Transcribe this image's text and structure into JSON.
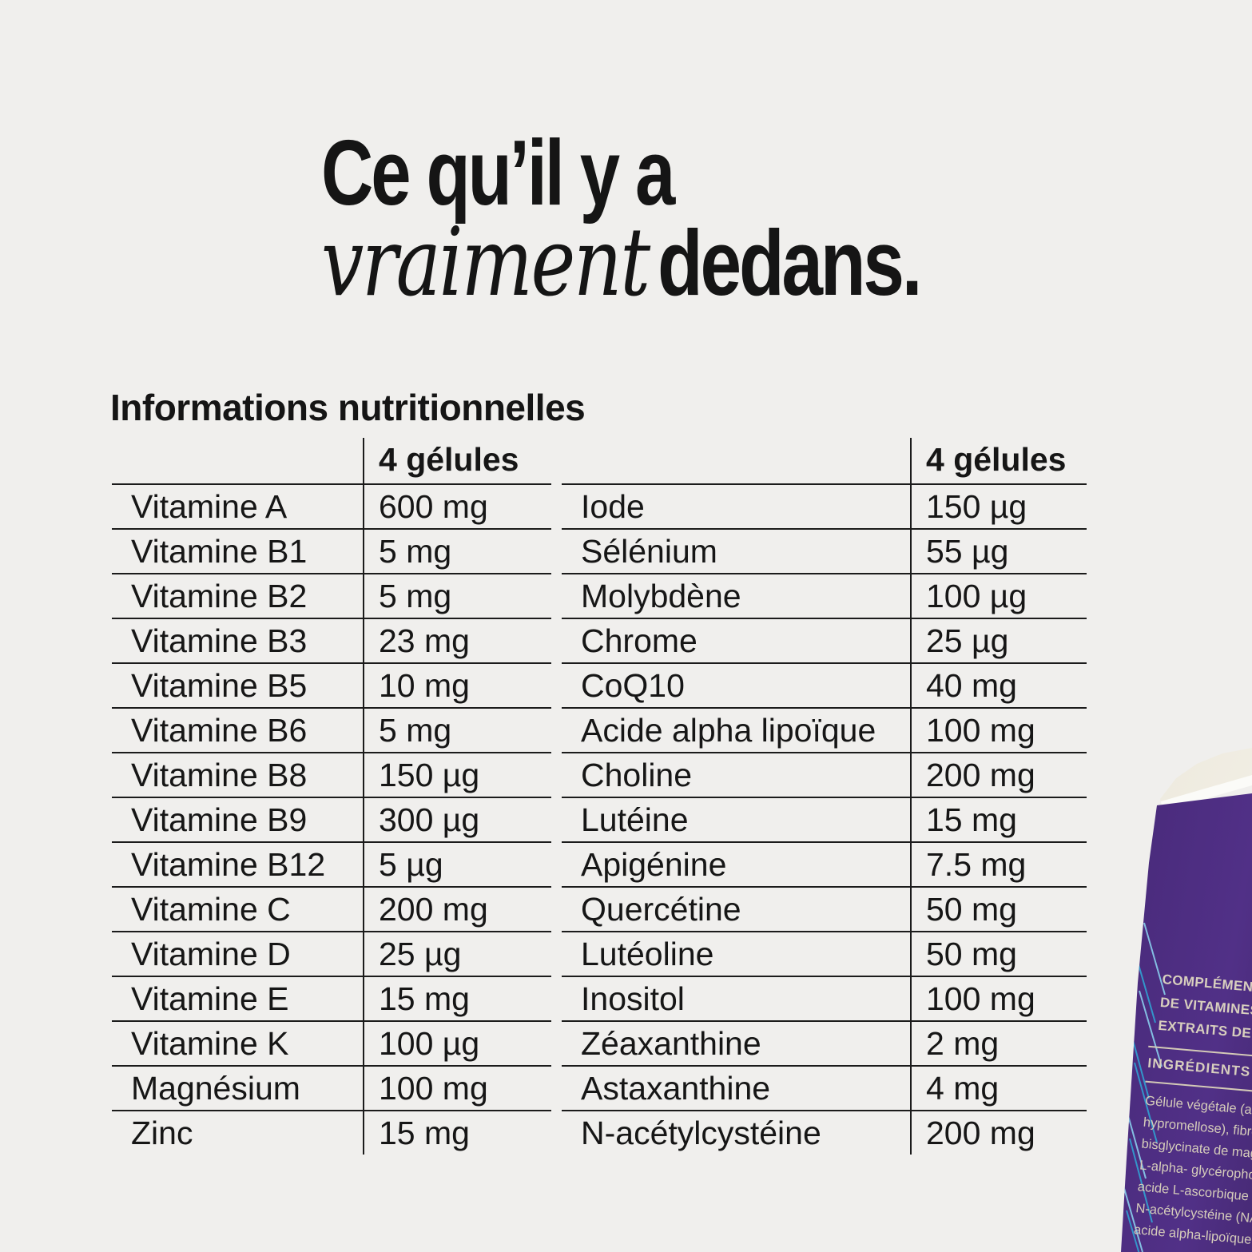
{
  "title": {
    "line1": "Ce qu’il y a",
    "line2_italic": "vraiment",
    "line2_bold": "dedans."
  },
  "section": {
    "heading": "Informations nutritionnelles"
  },
  "tables": [
    {
      "header": "4 gélules",
      "rows": [
        {
          "name": "Vitamine A",
          "value": "600 mg"
        },
        {
          "name": "Vitamine B1",
          "value": "5 mg"
        },
        {
          "name": "Vitamine B2",
          "value": "5 mg"
        },
        {
          "name": "Vitamine B3",
          "value": "23 mg"
        },
        {
          "name": "Vitamine B5",
          "value": "10 mg"
        },
        {
          "name": "Vitamine B6",
          "value": "5 mg"
        },
        {
          "name": "Vitamine B8",
          "value": "150 µg"
        },
        {
          "name": "Vitamine B9",
          "value": "300 µg"
        },
        {
          "name": "Vitamine B12",
          "value": "5 µg"
        },
        {
          "name": "Vitamine C",
          "value": "200 mg"
        },
        {
          "name": "Vitamine D",
          "value": "25 µg"
        },
        {
          "name": "Vitamine E",
          "value": "15 mg"
        },
        {
          "name": "Vitamine K",
          "value": "100 µg"
        },
        {
          "name": "Magnésium",
          "value": "100 mg"
        },
        {
          "name": "Zinc",
          "value": "15 mg"
        }
      ]
    },
    {
      "header": "4 gélules",
      "rows": [
        {
          "name": "Iode",
          "value": "150 µg"
        },
        {
          "name": "Sélénium",
          "value": "55 µg"
        },
        {
          "name": "Molybdène",
          "value": "100 µg"
        },
        {
          "name": "Chrome",
          "value": "25 µg"
        },
        {
          "name": "CoQ10",
          "value": "40 mg"
        },
        {
          "name": "Acide alpha lipoïque",
          "value": "100 mg"
        },
        {
          "name": "Choline",
          "value": "200 mg"
        },
        {
          "name": "Lutéine",
          "value": "15 mg"
        },
        {
          "name": "Apigénine",
          "value": "7.5 mg"
        },
        {
          "name": "Quercétine",
          "value": "50 mg"
        },
        {
          "name": "Lutéoline",
          "value": "50 mg"
        },
        {
          "name": "Inositol",
          "value": "100 mg"
        },
        {
          "name": "Zéaxanthine",
          "value": "2 mg"
        },
        {
          "name": "Astaxanthine",
          "value": "4 mg"
        },
        {
          "name": "N-acétylcystéine",
          "value": "200 mg"
        }
      ]
    }
  ],
  "product": {
    "claims_lines": [
      "COMPLÉMENT A",
      "DE VITAMINES, M",
      "EXTRAITS DE PLA"
    ],
    "ingredients_title": "INGRÉDIENTS",
    "ingredients_lines": [
      "Gélule végétale (agent",
      "hypromellose), fibres d",
      "bisglycinate de magnés",
      "L-alpha- glycérophosph",
      "acide L-ascorbique Qua",
      "N-acétylcystéine (NAC),",
      "acide alpha-lipoïque"
    ],
    "colors": {
      "purple": "#4b2c7e",
      "cap": "#ece8dc",
      "text_cream": "#d8cfbe",
      "hatch_blue": "#2fa9d8",
      "hatch_light_blue": "#8ed9f4"
    }
  }
}
